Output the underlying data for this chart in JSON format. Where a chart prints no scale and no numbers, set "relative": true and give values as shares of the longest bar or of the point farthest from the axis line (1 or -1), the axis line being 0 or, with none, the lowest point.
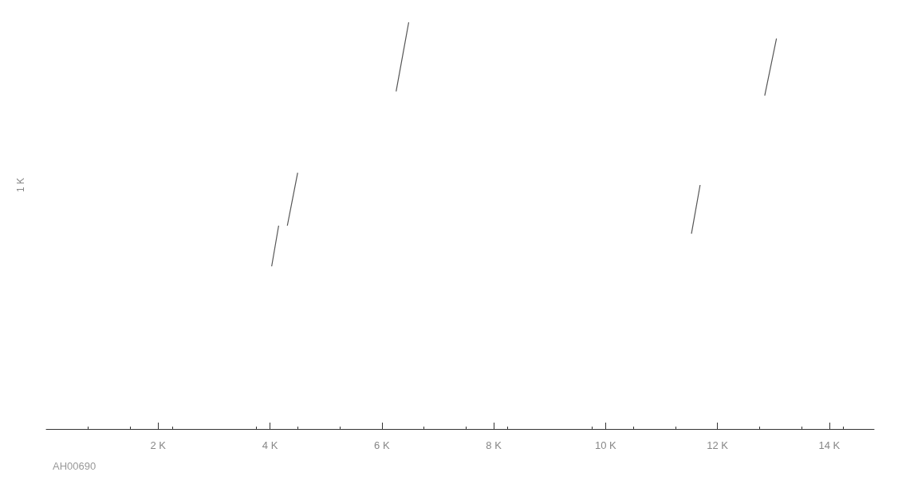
{
  "chart_data": {
    "type": "line",
    "relative": true,
    "x": [
      4030,
      4155,
      null,
      4310,
      4495,
      null,
      6255,
      6480,
      null,
      11535,
      11690,
      null,
      12845,
      13055
    ],
    "values": [
      0.4,
      0.5,
      null,
      0.5,
      0.63,
      null,
      0.83,
      1,
      null,
      0.48,
      0.6,
      null,
      0.82,
      0.96
    ],
    "color": "#555555",
    "xlim": [
      0,
      14800
    ],
    "xticks": [
      {
        "value": 2000,
        "label": "2 K"
      },
      {
        "value": 4000,
        "label": "4 K"
      },
      {
        "value": 6000,
        "label": "6 K"
      },
      {
        "value": 8000,
        "label": "8 K"
      },
      {
        "value": 10000,
        "label": "10 K"
      },
      {
        "value": 12000,
        "label": "12 K"
      },
      {
        "value": 14000,
        "label": "14 K"
      }
    ],
    "grid": false,
    "marker": "none",
    "line_style": "solid",
    "annotations": [
      "1 K",
      "AH00690"
    ]
  }
}
